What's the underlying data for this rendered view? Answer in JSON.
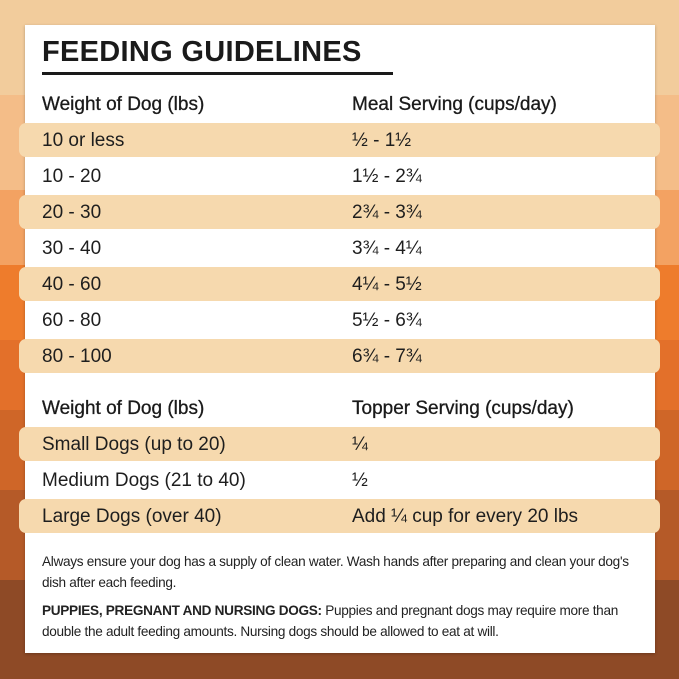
{
  "title": "FEEDING GUIDELINES",
  "meal_table": {
    "headers": [
      "Weight of Dog (lbs)",
      "Meal Serving (cups/day)"
    ],
    "rows": [
      [
        "10 or less",
        "½ - 1½"
      ],
      [
        "10 - 20",
        "1½ - 2¾"
      ],
      [
        "20 - 30",
        "2¾ - 3¾"
      ],
      [
        "30 - 40",
        "3¾ - 4¼"
      ],
      [
        "40 - 60",
        "4¼ - 5½"
      ],
      [
        "60 - 80",
        "5½ - 6¾"
      ],
      [
        "80 - 100",
        "6¾ - 7¾"
      ]
    ]
  },
  "topper_table": {
    "headers": [
      "Weight of Dog (lbs)",
      "Topper Serving (cups/day)"
    ],
    "rows": [
      [
        "Small Dogs (up to 20)",
        "¼"
      ],
      [
        "Medium Dogs (21 to 40)",
        "½"
      ],
      [
        "Large Dogs (over 40)",
        "Add ¼ cup for every 20 lbs"
      ]
    ]
  },
  "notes": {
    "water": "Always ensure your dog has a supply of clean water. Wash hands after preparing and clean your dog's dish after each feeding.",
    "puppies_label": "PUPPIES, PREGNANT AND NURSING DOGS:",
    "puppies_text": " Puppies and pregnant dogs may require more than double the adult feeding amounts. Nursing dogs should be allowed to eat at will."
  },
  "colors": {
    "row_highlight": "#f6d9ae",
    "card": "#ffffff",
    "text": "#1e1e1e"
  }
}
